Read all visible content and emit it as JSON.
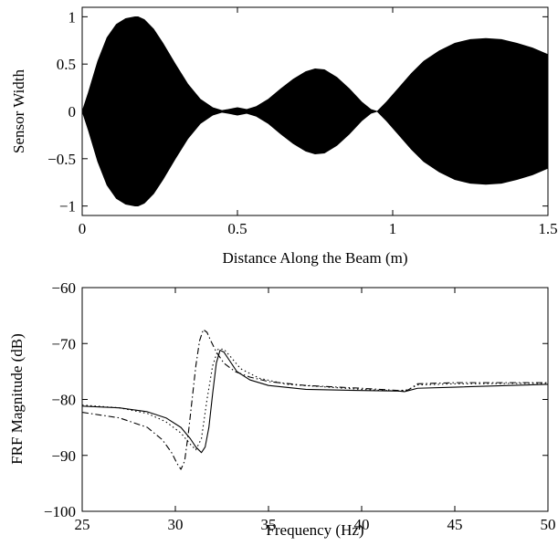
{
  "chart_data": [
    {
      "type": "area",
      "xlabel": "Distance Along the Beam (m)",
      "ylabel": "Sensor Width",
      "xlim": [
        0,
        1.5
      ],
      "ylim": [
        -1.1,
        1.1
      ],
      "xticks": [
        0,
        0.5,
        1,
        1.5
      ],
      "xtick_labels": [
        "0",
        "0.5",
        "1",
        "1.5"
      ],
      "yticks": [
        1,
        0.5,
        0,
        -0.5,
        -1
      ],
      "ytick_labels": [
        "1",
        "0.5",
        "0",
        "−0.5",
        "−1"
      ],
      "grid": false,
      "fill_color": "#000000",
      "series": [
        {
          "x": [
            0,
            0.02,
            0.05,
            0.08,
            0.11,
            0.14,
            0.17,
            0.18,
            0.2,
            0.23,
            0.26,
            0.3,
            0.34,
            0.38,
            0.42,
            0.45,
            0.47,
            0.5,
            0.53,
            0.56,
            0.6,
            0.64,
            0.68,
            0.72,
            0.75,
            0.78,
            0.82,
            0.86,
            0.9,
            0.93,
            0.95,
            0.98,
            1.02,
            1.06,
            1.1,
            1.15,
            1.2,
            1.25,
            1.3,
            1.35,
            1.4,
            1.45,
            1.5
          ],
          "y": [
            0,
            0.2,
            0.53,
            0.78,
            0.92,
            0.98,
            1.0,
            1.0,
            0.97,
            0.87,
            0.72,
            0.5,
            0.29,
            0.13,
            0.04,
            0.01,
            0.02,
            0.04,
            0.02,
            0.05,
            0.13,
            0.24,
            0.34,
            0.42,
            0.45,
            0.44,
            0.36,
            0.24,
            0.1,
            0.02,
            0.0,
            0.1,
            0.25,
            0.4,
            0.53,
            0.64,
            0.72,
            0.76,
            0.77,
            0.76,
            0.72,
            0.67,
            0.6
          ]
        }
      ]
    },
    {
      "type": "line",
      "xlabel": "Frequency (Hz)",
      "ylabel": "FRF Magnitude (dB)",
      "xlim": [
        25,
        50
      ],
      "ylim": [
        -100,
        -60
      ],
      "xticks": [
        25,
        30,
        35,
        40,
        45,
        50
      ],
      "xtick_labels": [
        "25",
        "30",
        "35",
        "40",
        "45",
        "50"
      ],
      "yticks": [
        -60,
        -70,
        -80,
        -90,
        -100
      ],
      "ytick_labels": [
        "−60",
        "−70",
        "−80",
        "−90",
        "−100"
      ],
      "grid": false,
      "series": [
        {
          "style": "solid",
          "x": [
            25,
            27,
            28.5,
            29.5,
            30.3,
            30.8,
            31.1,
            31.4,
            31.6,
            31.8,
            32.0,
            32.2,
            32.4,
            32.6,
            32.9,
            33.3,
            34,
            35,
            37,
            40,
            42,
            42.3,
            43,
            45,
            50
          ],
          "y": [
            -81.2,
            -81.5,
            -82.2,
            -83.3,
            -85,
            -87,
            -88.5,
            -89.5,
            -88.5,
            -85,
            -79,
            -73.5,
            -71.2,
            -71.5,
            -73,
            -75,
            -76.5,
            -77.5,
            -78.2,
            -78.4,
            -78.5,
            -78.6,
            -78.0,
            -77.8,
            -77.3
          ]
        },
        {
          "style": "dashdot",
          "x": [
            25,
            27,
            28.5,
            29.3,
            29.8,
            30.1,
            30.3,
            30.5,
            30.7,
            30.9,
            31.1,
            31.3,
            31.5,
            31.7,
            31.9,
            32.2,
            32.6,
            33.2,
            34,
            35,
            37,
            40,
            42,
            42.5,
            43,
            45,
            50
          ],
          "y": [
            -82.3,
            -83.3,
            -85,
            -87.2,
            -89.5,
            -91.5,
            -92.5,
            -91,
            -86,
            -80,
            -74,
            -69.5,
            -67.5,
            -68,
            -69.5,
            -71.5,
            -73.5,
            -75,
            -76,
            -76.8,
            -77.5,
            -78.0,
            -78.4,
            -78.3,
            -77.2,
            -77.0,
            -77.0
          ]
        },
        {
          "style": "dotted",
          "x": [
            25,
            27,
            28.5,
            29.5,
            30.3,
            30.8,
            31.1,
            31.4,
            31.7,
            32.0,
            32.3,
            32.6,
            33.0,
            33.5,
            34.5,
            36,
            40,
            42,
            42.4,
            43,
            45,
            50
          ],
          "y": [
            -81.0,
            -81.5,
            -82.5,
            -84,
            -86,
            -88,
            -89,
            -87,
            -80,
            -74,
            -71,
            -71,
            -72.5,
            -74.5,
            -76.2,
            -77.3,
            -78.2,
            -78.5,
            -78.4,
            -77.4,
            -77.2,
            -77.1
          ]
        }
      ]
    }
  ]
}
